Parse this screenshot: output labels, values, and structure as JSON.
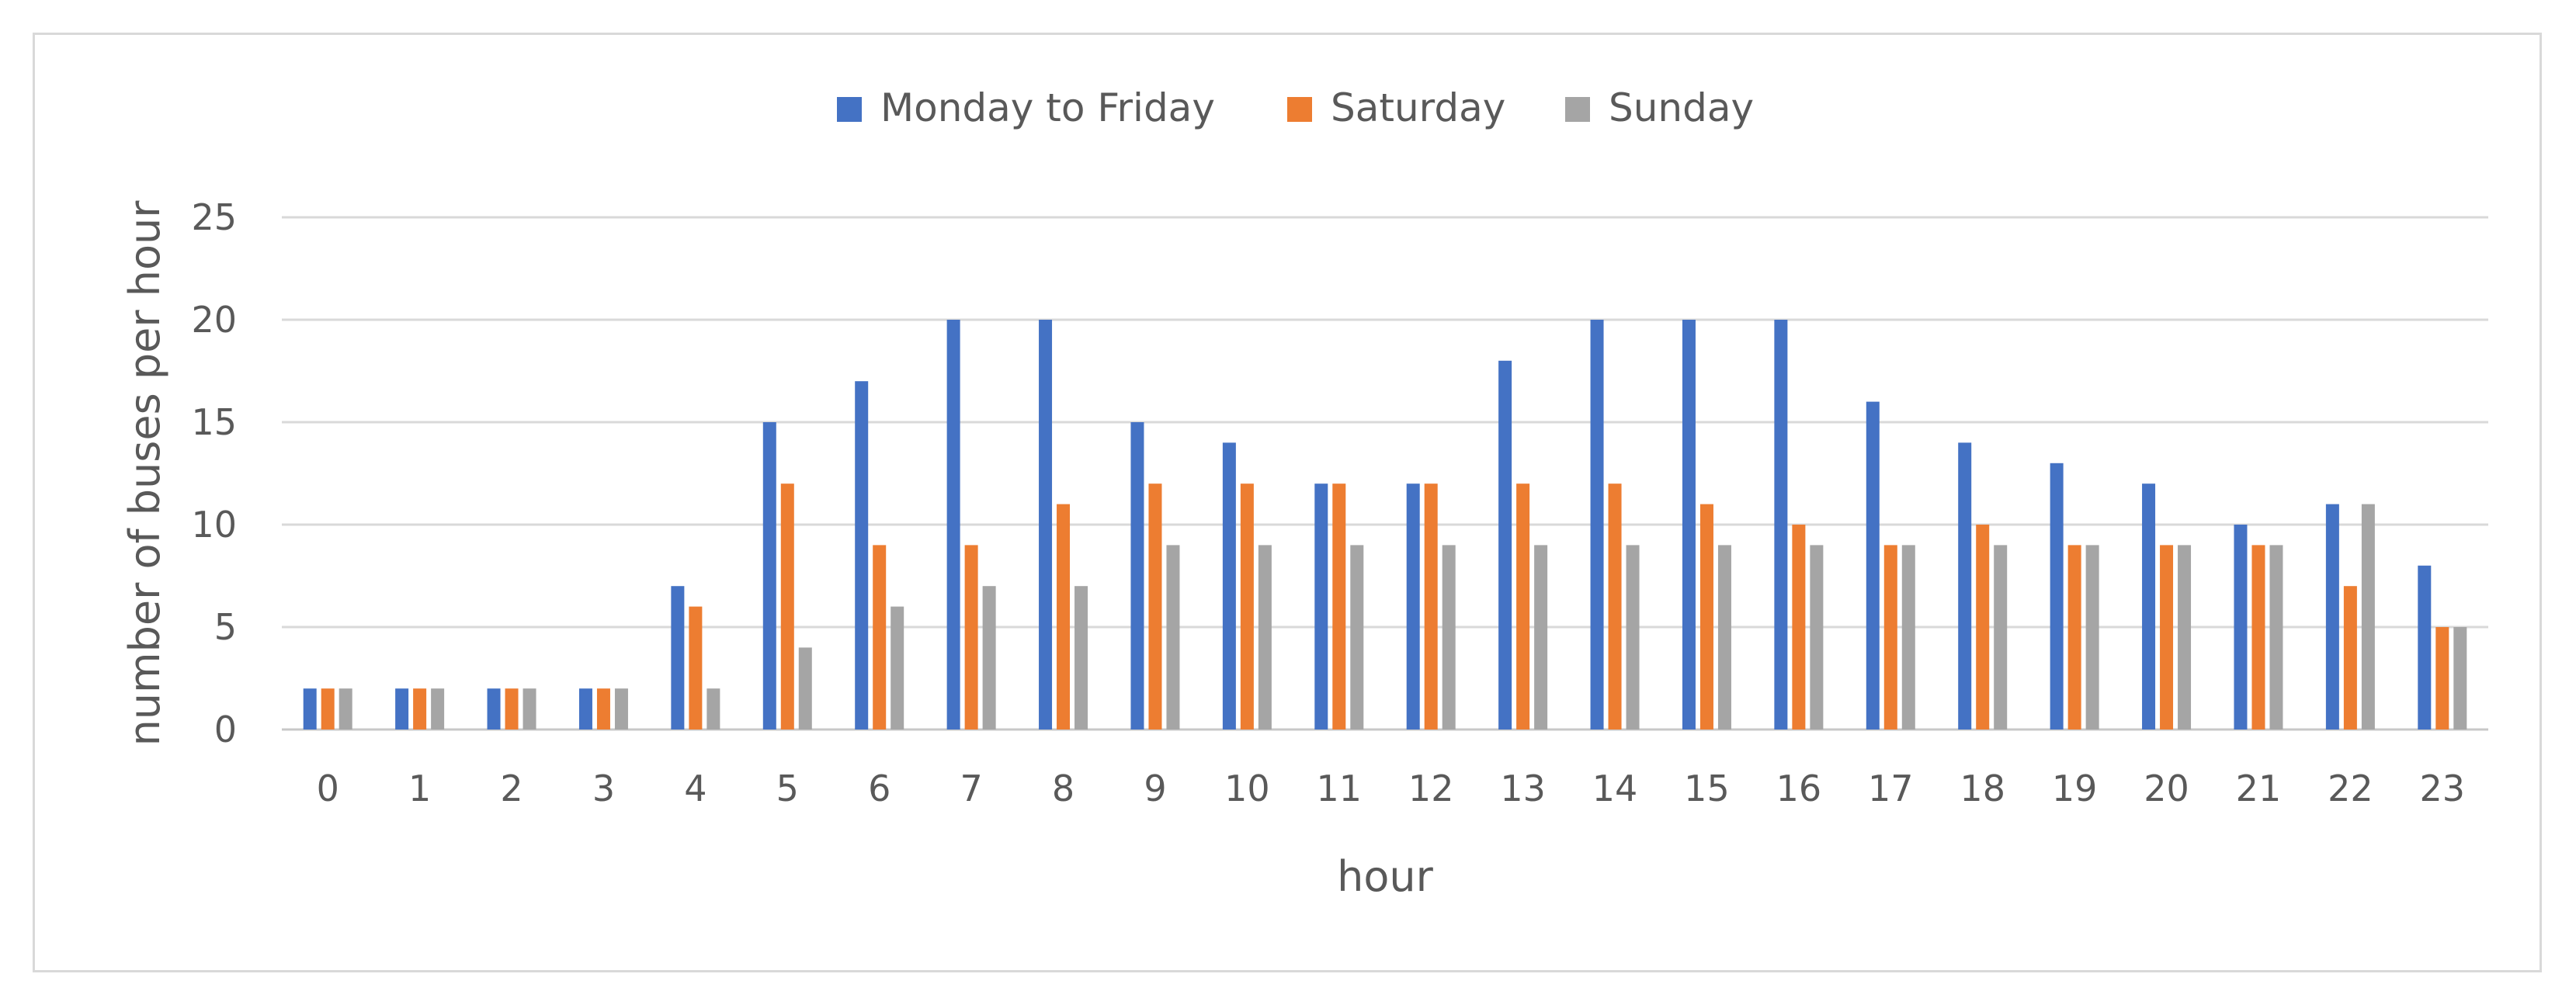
{
  "chart_data": {
    "type": "bar",
    "title": "",
    "xlabel": "hour",
    "ylabel": "number of buses per hour",
    "ylim": [
      0,
      25
    ],
    "yticks": [
      0,
      5,
      10,
      15,
      20,
      25
    ],
    "grid": true,
    "legend_position": "top",
    "categories": [
      "0",
      "1",
      "2",
      "3",
      "4",
      "5",
      "6",
      "7",
      "8",
      "9",
      "10",
      "11",
      "12",
      "13",
      "14",
      "15",
      "16",
      "17",
      "18",
      "19",
      "20",
      "21",
      "22",
      "23"
    ],
    "series": [
      {
        "name": "Monday to Friday",
        "color": "#4472c4",
        "values": [
          2,
          2,
          2,
          2,
          7,
          15,
          17,
          20,
          20,
          15,
          14,
          12,
          12,
          18,
          20,
          20,
          20,
          16,
          14,
          13,
          12,
          10,
          11,
          8
        ]
      },
      {
        "name": "Saturday",
        "color": "#ed7d31",
        "values": [
          2,
          2,
          2,
          2,
          6,
          12,
          9,
          9,
          11,
          12,
          12,
          12,
          12,
          12,
          12,
          11,
          10,
          9,
          10,
          9,
          9,
          9,
          7,
          5
        ]
      },
      {
        "name": "Sunday",
        "color": "#a5a5a5",
        "values": [
          2,
          2,
          2,
          2,
          2,
          4,
          6,
          7,
          7,
          9,
          9,
          9,
          9,
          9,
          9,
          9,
          9,
          9,
          9,
          9,
          9,
          9,
          11,
          5
        ]
      }
    ]
  }
}
